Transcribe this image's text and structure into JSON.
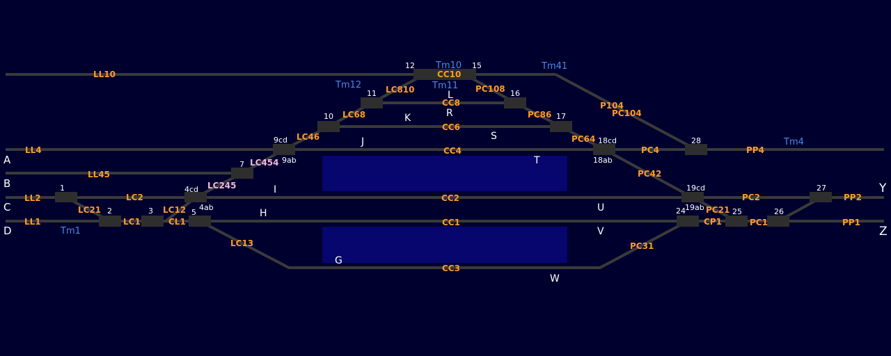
{
  "colors": {
    "background": "#00002e",
    "track": "#3a3a3a",
    "circuit_label": "#ff9a2a",
    "circuit_label_alt": "#f4b6dc",
    "train_tag": "#4f86e8",
    "platform": "#06066e",
    "text": "#ffffff"
  },
  "lines": {
    "A": "A",
    "B": "B",
    "C": "C",
    "D": "D",
    "Y": "Y",
    "Z": "Z"
  },
  "letters": {
    "G": "G",
    "H": "H",
    "I": "I",
    "J": "J",
    "K": "K",
    "L": "L",
    "R": "R",
    "S": "S",
    "T": "T",
    "U": "U",
    "V": "V",
    "W": "W"
  },
  "points": {
    "p1": "1",
    "p2": "2",
    "p3": "3",
    "p4cd": "4cd",
    "p4ab": "4ab",
    "p5": "5",
    "p7": "7",
    "p9cd": "9cd",
    "p9ab": "9ab",
    "p10": "10",
    "p11": "11",
    "p12": "12",
    "p15": "15",
    "p16": "16",
    "p17": "17",
    "p18cd": "18cd",
    "p18ab": "18ab",
    "p19cd": "19cd",
    "p19ab": "19ab",
    "p24": "24",
    "p25": "25",
    "p26": "26",
    "p27": "27",
    "p28": "28"
  },
  "circuits": {
    "LL10": "LL10",
    "LL4": "LL4",
    "LL45": "LL45",
    "LL2": "LL2",
    "LL1": "LL1",
    "LC21": "LC21",
    "LC2": "LC2",
    "LC1": "LC1",
    "LC12": "LC12",
    "CL1": "CL1",
    "LC245": "LC245",
    "LC454": "LC454",
    "LC46": "LC46",
    "LC68": "LC68",
    "LC810": "LC810",
    "LC13": "LC13",
    "CC10": "CC10",
    "CC8": "CC8",
    "CC6": "CC6",
    "CC4": "CC4",
    "CC2": "CC2",
    "CC1": "CC1",
    "CC3": "CC3",
    "PC108": "PC108",
    "PC86": "PC86",
    "PC64": "PC64",
    "P104": "P104",
    "PC104": "PC104",
    "PC4": "PC4",
    "PP4": "PP4",
    "PC42": "PC42",
    "PC2": "PC2",
    "PC21": "PC21",
    "CP1": "CP1",
    "PC1": "PC1",
    "PC31": "PC31",
    "PP2": "PP2",
    "PP1": "PP1"
  },
  "trains": {
    "Tm10": "Tm10",
    "Tm11": "Tm11",
    "Tm12": "Tm12",
    "Tm41": "Tm41",
    "Tm4": "Tm4",
    "Tm1": "Tm1"
  }
}
